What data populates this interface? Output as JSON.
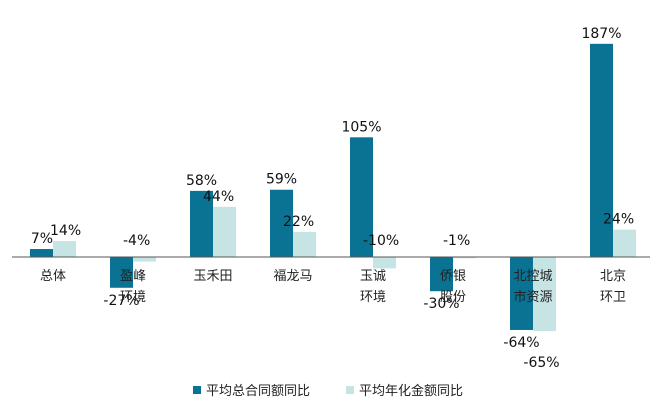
{
  "chart_data": {
    "type": "bar",
    "categories": [
      "总体",
      "盈峰环境",
      "玉禾田",
      "福龙马",
      "玉诚环境",
      "侨银股份",
      "北控城市资源",
      "北京环卫"
    ],
    "category_lines": [
      [
        "总体"
      ],
      [
        "盈峰",
        "环境"
      ],
      [
        "玉禾田"
      ],
      [
        "福龙马"
      ],
      [
        "玉诚",
        "环境"
      ],
      [
        "侨银",
        "股份"
      ],
      [
        "北控城",
        "市资源"
      ],
      [
        "北京",
        "环卫"
      ]
    ],
    "series": [
      {
        "name": "平均总合同额同比",
        "values": [
          7,
          -27,
          58,
          59,
          105,
          -30,
          -64,
          187
        ],
        "labels": [
          "7%",
          "-27%",
          "58%",
          "59%",
          "105%",
          "-30%",
          "-64%",
          "187%"
        ]
      },
      {
        "name": "平均年化金额同比",
        "values": [
          14,
          -4,
          44,
          22,
          -10,
          -1,
          -65,
          24
        ],
        "labels": [
          "14%",
          "-4%",
          "44%",
          "22%",
          "-10%",
          "-1%",
          "-65%",
          "24%"
        ]
      }
    ],
    "colors": [
      "#0a7394",
      "#c6e4e3"
    ],
    "ylim": [
      -100,
      200
    ],
    "grid": false,
    "legend_position": "bottom"
  }
}
